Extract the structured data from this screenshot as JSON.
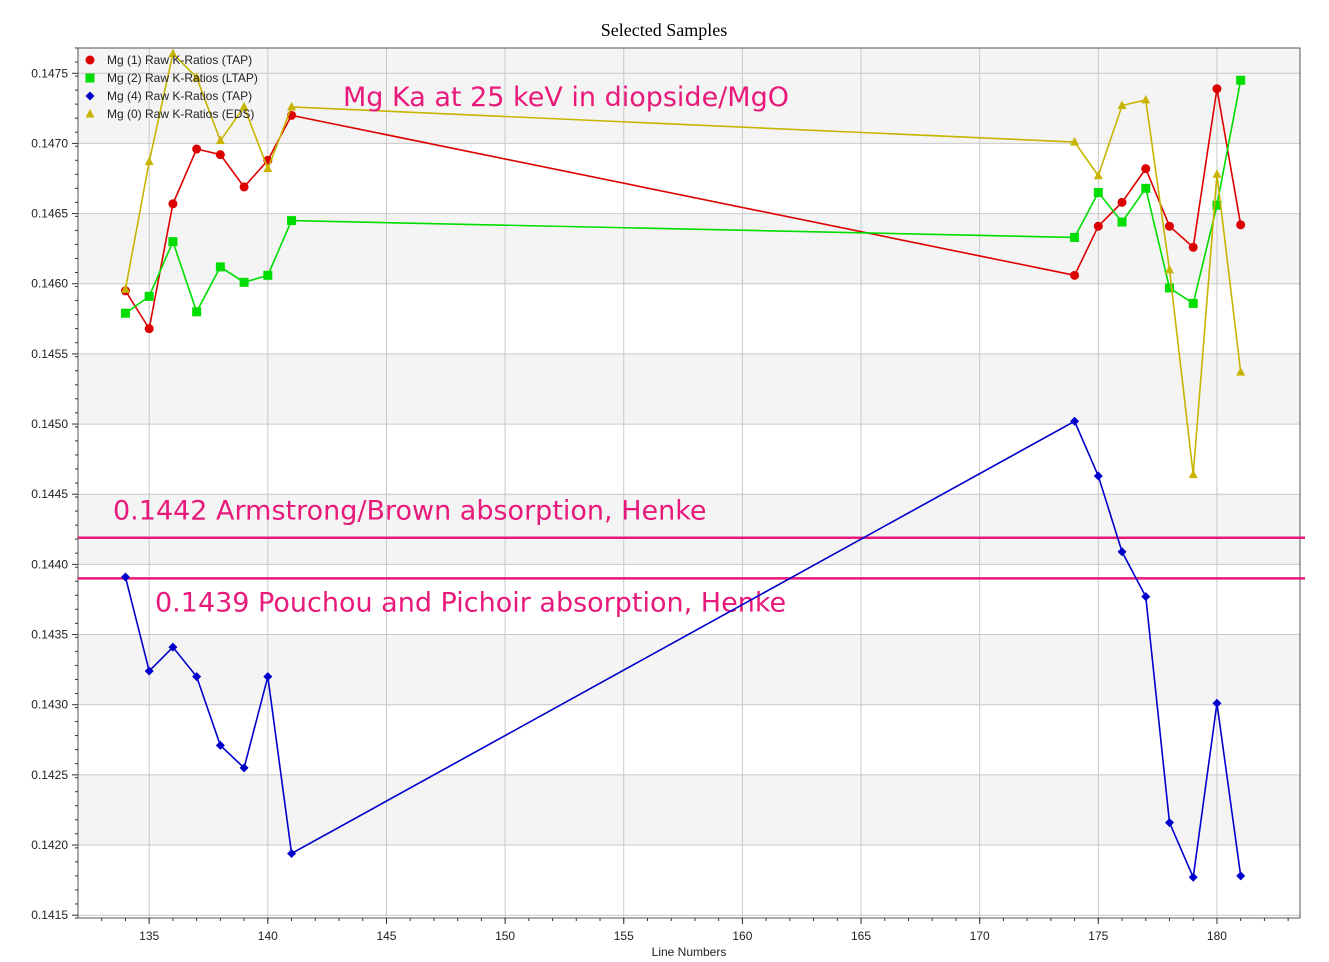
{
  "chart_data": {
    "type": "line",
    "title": "Selected Samples",
    "xlabel": "Line Numbers",
    "ylabel": "",
    "xlim": [
      132,
      183.5
    ],
    "ylim": [
      0.14148,
      0.14768
    ],
    "x_ticks": [
      135,
      140,
      145,
      150,
      155,
      160,
      165,
      170,
      175,
      180
    ],
    "y_ticks": [
      0.1415,
      0.142,
      0.1425,
      0.143,
      0.1435,
      0.144,
      0.1445,
      0.145,
      0.1455,
      0.146,
      0.1465,
      0.147,
      0.1475
    ],
    "y_tick_labels": [
      "0.1415",
      "0.1420",
      "0.1425",
      "0.1430",
      "0.1435",
      "0.1440",
      "0.1445",
      "0.1450",
      "0.1455",
      "0.1460",
      "0.1465",
      "0.1470",
      "0.1475"
    ],
    "grid": true,
    "legend_position": "top-left",
    "series": [
      {
        "name": "Mg (1) Raw K-Ratios (TAP)",
        "color": "#dd0000",
        "marker": "circle",
        "x": [
          134,
          135,
          136,
          137,
          138,
          139,
          140,
          141,
          174,
          175,
          176,
          177,
          178,
          179,
          180,
          181
        ],
        "y": [
          0.14595,
          0.14568,
          0.14657,
          0.14696,
          0.14692,
          0.14669,
          0.14688,
          0.1472,
          0.14606,
          0.14641,
          0.14658,
          0.14682,
          0.14641,
          0.14626,
          0.14739,
          0.14642
        ]
      },
      {
        "name": "Mg (2) Raw K-Ratios (LTAP)",
        "color": "#00dd00",
        "marker": "square",
        "x": [
          134,
          135,
          136,
          137,
          138,
          139,
          140,
          141,
          174,
          175,
          176,
          177,
          178,
          179,
          180,
          181
        ],
        "y": [
          0.14579,
          0.14591,
          0.1463,
          0.1458,
          0.14612,
          0.14601,
          0.14606,
          0.14645,
          0.14633,
          0.14665,
          0.14644,
          0.14668,
          0.14597,
          0.14586,
          0.14656,
          0.14745
        ]
      },
      {
        "name": "Mg (4) Raw K-Ratios (TAP)",
        "color": "#0000cc",
        "marker": "diamond",
        "x": [
          134,
          135,
          136,
          137,
          138,
          139,
          140,
          141,
          174,
          175,
          176,
          177,
          178,
          179,
          180,
          181
        ],
        "y": [
          0.14391,
          0.14324,
          0.14341,
          0.1432,
          0.14271,
          0.14255,
          0.1432,
          0.14194,
          0.14502,
          0.14463,
          0.14409,
          0.14377,
          0.14216,
          0.14177,
          0.14301,
          0.14178
        ]
      },
      {
        "name": "Mg (0) Raw K-Ratios (EDS)",
        "color": "#c8b400",
        "marker": "triangle",
        "x": [
          134,
          135,
          136,
          137,
          138,
          139,
          140,
          141,
          174,
          175,
          176,
          177,
          178,
          179,
          180,
          181
        ],
        "y": [
          0.14596,
          0.14687,
          0.14764,
          0.14747,
          0.14702,
          0.14726,
          0.14682,
          0.14726,
          0.14701,
          0.14677,
          0.14727,
          0.14731,
          0.1461,
          0.14464,
          0.14678,
          0.14537
        ]
      }
    ],
    "reference_lines": [
      {
        "y": 0.14419,
        "label": "0.1442 Armstrong/Brown absorption, Henke",
        "color": "#e8197a"
      },
      {
        "y": 0.1439,
        "label": "0.1439 Pouchou and Pichoir absorption, Henke",
        "color": "#e8197a"
      }
    ],
    "annotation": "Mg Ka at 25 keV in diopside/MgO"
  }
}
